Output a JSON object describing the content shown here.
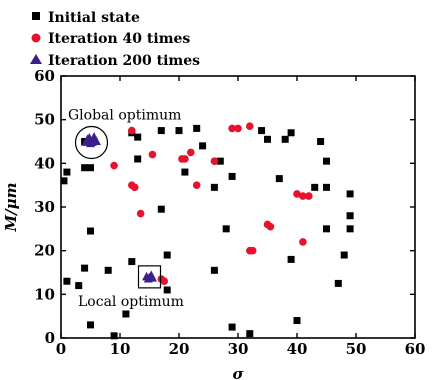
{
  "chart_data": {
    "type": "scatter",
    "xlabel": "σ",
    "ylabel": "M/μm",
    "xlim": [
      0,
      60
    ],
    "ylim": [
      0,
      60
    ],
    "xticks": [
      0,
      10,
      20,
      30,
      40,
      50,
      60
    ],
    "yticks": [
      0,
      10,
      20,
      30,
      40,
      50,
      60
    ],
    "grid": false,
    "legend_position": "top-left",
    "series": [
      {
        "name": "Initial state",
        "marker": "square",
        "color": "#000000",
        "points": [
          [
            0.5,
            36
          ],
          [
            1,
            38
          ],
          [
            1,
            13
          ],
          [
            3,
            12
          ],
          [
            4,
            45
          ],
          [
            4,
            39
          ],
          [
            4,
            16
          ],
          [
            5,
            39
          ],
          [
            5,
            24.5
          ],
          [
            5,
            3
          ],
          [
            8,
            15.5
          ],
          [
            9,
            0.5
          ],
          [
            11,
            5.5
          ],
          [
            12,
            17.5
          ],
          [
            12,
            47
          ],
          [
            13,
            46
          ],
          [
            13,
            41
          ],
          [
            17,
            29.5
          ],
          [
            17,
            47.5
          ],
          [
            18,
            19
          ],
          [
            18,
            11
          ],
          [
            20,
            47.5
          ],
          [
            21,
            38
          ],
          [
            23,
            48
          ],
          [
            24,
            44
          ],
          [
            26,
            15.5
          ],
          [
            26,
            34.5
          ],
          [
            27,
            40.5
          ],
          [
            28,
            25
          ],
          [
            29,
            37
          ],
          [
            29,
            2.5
          ],
          [
            32,
            1
          ],
          [
            34,
            47.5
          ],
          [
            35,
            45.5
          ],
          [
            37,
            36.5
          ],
          [
            38,
            45.5
          ],
          [
            39,
            18
          ],
          [
            39,
            47
          ],
          [
            40,
            4
          ],
          [
            43,
            34.5
          ],
          [
            44,
            45
          ],
          [
            45,
            40.5
          ],
          [
            45,
            25
          ],
          [
            45,
            34.5
          ],
          [
            47,
            12.5
          ],
          [
            48,
            19
          ],
          [
            49,
            33
          ],
          [
            49,
            28
          ],
          [
            49,
            25
          ]
        ]
      },
      {
        "name": "Iteration 40 times",
        "marker": "circle",
        "color": "#e8122e",
        "points": [
          [
            9,
            39.5
          ],
          [
            12,
            35
          ],
          [
            12.5,
            34.5
          ],
          [
            12,
            47.5
          ],
          [
            13.5,
            28.5
          ],
          [
            15.5,
            42
          ],
          [
            20.5,
            41
          ],
          [
            21,
            41
          ],
          [
            22,
            42.5
          ],
          [
            23,
            35
          ],
          [
            26,
            40.5
          ],
          [
            29,
            48
          ],
          [
            30,
            48
          ],
          [
            32,
            48.5
          ],
          [
            32,
            20
          ],
          [
            32.5,
            20
          ],
          [
            35,
            26
          ],
          [
            35.5,
            25.5
          ],
          [
            40,
            33
          ],
          [
            41,
            32.5
          ],
          [
            42,
            32.5
          ],
          [
            41,
            22
          ],
          [
            17,
            13.5
          ],
          [
            17.5,
            13
          ]
        ]
      },
      {
        "name": "Iteration 200 times",
        "marker": "triangle",
        "color": "#3b1f8a",
        "points": [
          [
            4.5,
            45.5
          ],
          [
            5,
            45
          ],
          [
            5.5,
            45.5
          ],
          [
            5,
            44.5
          ],
          [
            4.8,
            45.8
          ],
          [
            5.3,
            44.8
          ],
          [
            6,
            45
          ],
          [
            4.2,
            44.8
          ],
          [
            5.6,
            46
          ],
          [
            14.5,
            14
          ],
          [
            15,
            13.8
          ],
          [
            15.3,
            14.3
          ],
          [
            14.8,
            13.5
          ],
          [
            15.5,
            13.7
          ]
        ]
      }
    ],
    "annotations": [
      {
        "text": "Global optimum",
        "target": [
          5,
          45
        ],
        "shape": "circle"
      },
      {
        "text": "Local optimum",
        "target": [
          15,
          14
        ],
        "shape": "square"
      }
    ]
  },
  "colors": {
    "axis": "#000000",
    "initial": "#000000",
    "iter40": "#e8122e",
    "iter200": "#3b1f8a"
  }
}
